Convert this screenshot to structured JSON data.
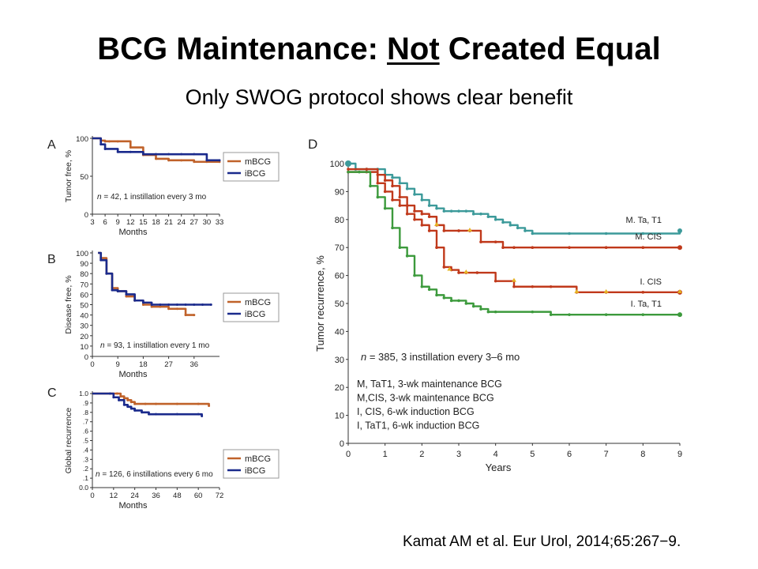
{
  "slide": {
    "title_pre": "BCG Maintenance: ",
    "title_emph": "Not",
    "title_post": " Created Equal",
    "subtitle": "Only SWOG protocol shows clear benefit",
    "citation": "Kamat AM et al. Eur Urol, 2014;65:267−9."
  },
  "colors": {
    "mBCG": "#c0622a",
    "iBCG": "#1a2a8c",
    "M_TaT1": "#3c9a9a",
    "M_CIS": "#c0391b",
    "I_CIS": "#c0391b",
    "I_TaT1": "#3c9a3c",
    "censor_yellow": "#e6b422"
  },
  "chart_data": [
    {
      "panel": "A",
      "type": "line",
      "ylabel": "Tumor free, %",
      "xlabel": "Months",
      "xticks": [
        3,
        6,
        9,
        12,
        15,
        18,
        21,
        24,
        27,
        30,
        33
      ],
      "yticks": [
        0,
        50,
        100
      ],
      "xlim": [
        3,
        33
      ],
      "ylim": [
        0,
        100
      ],
      "annotation_n": "n",
      "annotation_text": " = 42, 1 instillation every 3 mo",
      "legend": [
        "mBCG",
        "iBCG"
      ],
      "series": [
        {
          "name": "mBCG",
          "x": [
            3,
            5,
            6,
            7,
            9,
            12,
            15,
            18,
            21,
            24,
            27,
            30,
            33
          ],
          "y": [
            100,
            97,
            96,
            96,
            96,
            88,
            78,
            73,
            71,
            71,
            69,
            69,
            69
          ]
        },
        {
          "name": "iBCG",
          "x": [
            3,
            5,
            6,
            9,
            12,
            15,
            18,
            21,
            24,
            27,
            30,
            33
          ],
          "y": [
            100,
            92,
            86,
            82,
            82,
            79,
            79,
            79,
            79,
            79,
            71,
            71
          ]
        }
      ]
    },
    {
      "panel": "B",
      "type": "line",
      "ylabel": "Disease free, %",
      "xlabel": "Months",
      "xticks": [
        0,
        9,
        18,
        27,
        36
      ],
      "yticks": [
        0,
        10,
        20,
        30,
        40,
        50,
        60,
        70,
        80,
        90,
        100
      ],
      "xlim": [
        0,
        45
      ],
      "ylim": [
        0,
        100
      ],
      "annotation_n": "n",
      "annotation_text": " = 93, 1 instillation every 1 mo",
      "legend": [
        "mBCG",
        "iBCG"
      ],
      "series": [
        {
          "name": "mBCG",
          "x": [
            2,
            3,
            5,
            7,
            9,
            12,
            15,
            18,
            21,
            24,
            27,
            30,
            33,
            36
          ],
          "y": [
            100,
            95,
            80,
            66,
            63,
            58,
            54,
            50,
            48,
            48,
            46,
            46,
            40,
            40
          ]
        },
        {
          "name": "iBCG",
          "x": [
            2,
            3,
            5,
            7,
            9,
            12,
            15,
            18,
            21,
            24,
            27,
            30,
            33,
            36,
            39,
            42
          ],
          "y": [
            100,
            93,
            80,
            64,
            63,
            60,
            54,
            52,
            50,
            50,
            50,
            50,
            50,
            50,
            50,
            50
          ]
        }
      ]
    },
    {
      "panel": "C",
      "type": "line",
      "ylabel": "Global recurrence",
      "xlabel": "Months",
      "xticks": [
        0,
        12,
        24,
        36,
        48,
        60,
        72
      ],
      "ytick_labels": [
        "0.0",
        ".1",
        ".2",
        ".3",
        ".4",
        ".5",
        ".6",
        ".7",
        ".8",
        ".9",
        "1.0"
      ],
      "xlim": [
        0,
        72
      ],
      "ylim": [
        0,
        1
      ],
      "annotation_n": "n",
      "annotation_text": " = 126, 6 instillations every 6 mo",
      "legend": [
        "mBCG",
        "iBCG"
      ],
      "series": [
        {
          "name": "mBCG",
          "x": [
            0,
            14,
            16,
            18,
            20,
            22,
            24,
            30,
            36,
            48,
            60,
            66
          ],
          "y": [
            1.0,
            1.0,
            0.97,
            0.95,
            0.93,
            0.91,
            0.89,
            0.89,
            0.89,
            0.89,
            0.89,
            0.87
          ]
        },
        {
          "name": "iBCG",
          "x": [
            0,
            10,
            12,
            15,
            18,
            20,
            22,
            24,
            28,
            32,
            36,
            48,
            60,
            62
          ],
          "y": [
            1.0,
            1.0,
            0.96,
            0.93,
            0.88,
            0.86,
            0.84,
            0.82,
            0.8,
            0.78,
            0.78,
            0.78,
            0.78,
            0.76
          ]
        }
      ]
    },
    {
      "panel": "D",
      "type": "line",
      "ylabel": "Tumor recurrence, %",
      "xlabel": "Years",
      "xticks": [
        0,
        1,
        2,
        3,
        4,
        5,
        6,
        7,
        8,
        9
      ],
      "yticks": [
        0,
        10,
        20,
        30,
        40,
        50,
        60,
        70,
        80,
        90,
        100
      ],
      "xlim": [
        0,
        9
      ],
      "ylim": [
        0,
        100
      ],
      "annotation_n": "n",
      "annotation_text": " = 385, 3 instillation every 3–6 mo",
      "notes": [
        "M, TaT1, 3-wk maintenance BCG",
        "M,CIS, 3-wk maintenance BCG",
        "I, CIS, 6-wk induction BCG",
        "I, TaT1, 6-wk induction BCG"
      ],
      "series": [
        {
          "name": "M. Ta, T1",
          "x": [
            0,
            0.2,
            0.5,
            0.8,
            1.0,
            1.2,
            1.4,
            1.6,
            1.8,
            2.0,
            2.2,
            2.4,
            2.6,
            2.8,
            3.0,
            3.2,
            3.4,
            3.6,
            3.8,
            4.0,
            4.2,
            4.4,
            4.6,
            4.8,
            5.0,
            6.0,
            7.0,
            8.0,
            9.0
          ],
          "y": [
            100,
            98,
            98,
            98,
            96,
            95,
            93,
            91,
            89,
            87,
            85,
            84,
            83,
            83,
            83,
            83,
            82,
            82,
            81,
            80,
            79,
            78,
            77,
            76,
            75,
            75,
            75,
            75,
            76
          ]
        },
        {
          "name": "M. CIS",
          "x": [
            0,
            0.5,
            0.8,
            1.0,
            1.2,
            1.4,
            1.6,
            1.8,
            2.0,
            2.2,
            2.4,
            2.6,
            3.0,
            3.3,
            3.6,
            4.0,
            4.2,
            4.5,
            5.0,
            6.0,
            7.0,
            8.0,
            9.0
          ],
          "y": [
            98,
            98,
            96,
            94,
            92,
            88,
            85,
            83,
            82,
            81,
            78,
            76,
            76,
            76,
            72,
            72,
            70,
            70,
            70,
            70,
            70,
            70,
            70
          ]
        },
        {
          "name": "I. CIS",
          "x": [
            0,
            0.5,
            0.8,
            1.0,
            1.2,
            1.4,
            1.6,
            1.8,
            2.0,
            2.2,
            2.4,
            2.6,
            2.8,
            3.0,
            3.2,
            3.5,
            4.0,
            4.5,
            5.0,
            5.5,
            6.2,
            7.0,
            8.0,
            9.0
          ],
          "y": [
            97,
            97,
            93,
            90,
            87,
            85,
            82,
            80,
            78,
            76,
            70,
            63,
            62,
            61,
            61,
            61,
            58,
            56,
            56,
            56,
            54,
            54,
            54,
            54
          ]
        },
        {
          "name": "I. Ta, T1",
          "x": [
            0,
            0.3,
            0.6,
            0.8,
            1.0,
            1.2,
            1.4,
            1.6,
            1.8,
            2.0,
            2.2,
            2.4,
            2.6,
            2.8,
            3.0,
            3.2,
            3.4,
            3.6,
            3.8,
            4.0,
            5.0,
            5.5,
            6.0,
            7.0,
            8.0,
            9.0
          ],
          "y": [
            97,
            97,
            92,
            88,
            84,
            77,
            70,
            67,
            60,
            56,
            55,
            53,
            52,
            51,
            51,
            50,
            49,
            48,
            47,
            47,
            47,
            46,
            46,
            46,
            46,
            46
          ]
        }
      ]
    }
  ]
}
